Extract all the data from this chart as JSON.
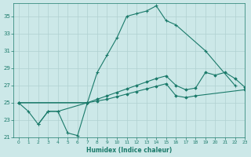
{
  "xlabel": "Humidex (Indice chaleur)",
  "bg_color": "#cce8e8",
  "grid_color": "#b0d0d0",
  "line_color": "#1a7a6a",
  "xlim": [
    -0.5,
    23
  ],
  "ylim": [
    21,
    36.5
  ],
  "yticks": [
    21,
    23,
    25,
    27,
    29,
    31,
    33,
    35
  ],
  "xticks": [
    0,
    1,
    2,
    3,
    4,
    5,
    6,
    7,
    8,
    9,
    10,
    11,
    12,
    13,
    14,
    15,
    16,
    17,
    18,
    19,
    20,
    21,
    22,
    23
  ],
  "curve1_x": [
    0,
    1,
    2,
    3,
    4,
    5,
    6,
    7
  ],
  "curve1_y": [
    25.0,
    24.0,
    22.5,
    24.0,
    24.0,
    21.5,
    21.2,
    25.0
  ],
  "curve2_x": [
    2,
    3,
    4,
    7,
    8,
    9,
    10,
    11,
    12,
    13,
    14,
    15,
    16,
    19,
    22
  ],
  "curve2_y": [
    22.5,
    24.0,
    24.0,
    25.0,
    28.5,
    30.5,
    32.5,
    35.0,
    35.3,
    35.6,
    36.2,
    34.5,
    34.0,
    31.0,
    27.0
  ],
  "curve3_x": [
    0,
    7,
    8,
    9,
    10,
    11,
    12,
    13,
    14,
    15,
    16,
    17,
    18,
    19,
    20,
    21,
    22,
    23
  ],
  "curve3_y": [
    25.0,
    25.0,
    25.4,
    25.8,
    26.2,
    26.6,
    27.0,
    27.4,
    27.8,
    28.1,
    27.0,
    26.5,
    26.7,
    28.5,
    28.2,
    28.5,
    27.8,
    26.8
  ],
  "curve4_x": [
    0,
    7,
    8,
    9,
    10,
    11,
    12,
    13,
    14,
    15,
    16,
    17,
    18,
    23
  ],
  "curve4_y": [
    25.0,
    25.0,
    25.2,
    25.4,
    25.7,
    26.0,
    26.3,
    26.6,
    26.9,
    27.2,
    25.8,
    25.6,
    25.8,
    26.5
  ]
}
